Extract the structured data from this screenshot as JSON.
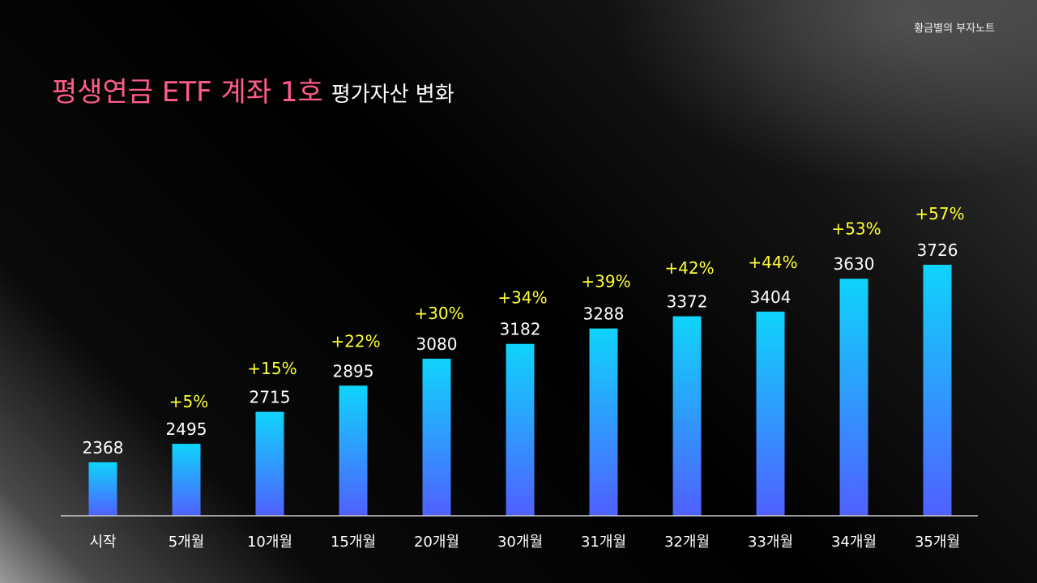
{
  "brand": "황금별의 부자노트",
  "title": {
    "main": "평생연금 ETF 계좌 1호",
    "sub": "평가자산 변화"
  },
  "colors": {
    "title_accent": "#ff5c8a",
    "percent_text": "#ffff33",
    "bar_top": "#0fd4fb",
    "bar_bottom": "#5060ff"
  },
  "chart_data": {
    "type": "bar",
    "categories": [
      "시작",
      "5개월",
      "10개월",
      "15개월",
      "20개월",
      "30개월",
      "31개월",
      "32개월",
      "33개월",
      "34개월",
      "35개월"
    ],
    "values": [
      2368,
      2495,
      2715,
      2895,
      3080,
      3182,
      3288,
      3372,
      3404,
      3630,
      3726
    ],
    "value_labels": [
      "2368",
      "2495",
      "2715",
      "2895",
      "3080",
      "3182",
      "3288",
      "3372",
      "3404",
      "3630",
      "3726"
    ],
    "percent_labels": [
      "",
      "+5%",
      "+15%",
      "+22%",
      "+30%",
      "+34%",
      "+39%",
      "+42%",
      "+44%",
      "+53%",
      "+57%"
    ],
    "title": "평생연금 ETF 계좌 1호 평가자산 변화",
    "xlabel": "",
    "ylabel": "",
    "grid": false,
    "legend": "none"
  }
}
